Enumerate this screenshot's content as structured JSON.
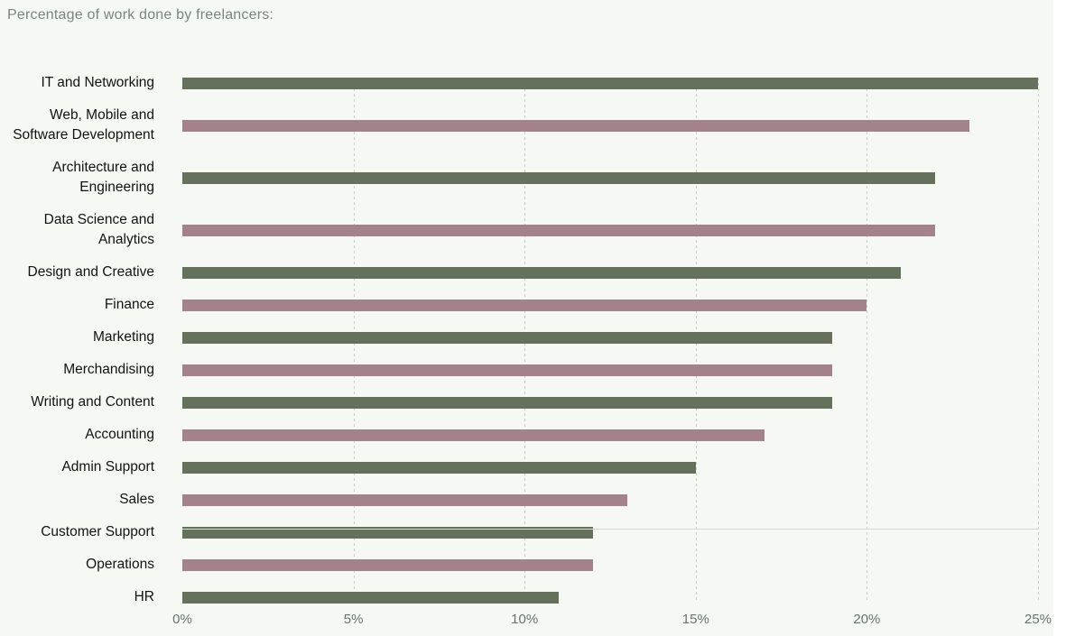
{
  "title": "Percentage of work done by freelancers:",
  "colors": {
    "background": "#f5f8f3",
    "bar_green": "#65715a",
    "bar_mauve": "#a4828a",
    "title_text": "#7b867b",
    "axis_text": "#69756a",
    "label_text": "#101314",
    "gridline": "#c9cec9",
    "axis_line": "#d6dad3"
  },
  "chart_data": {
    "type": "bar",
    "orientation": "horizontal",
    "title": "Percentage of work done by freelancers:",
    "categories": [
      "IT and Networking",
      "Web, Mobile and Software Development",
      "Architecture and Engineering",
      "Data Science and Analytics",
      "Design and Creative",
      "Finance",
      "Marketing",
      "Merchandising",
      "Writing and Content",
      "Accounting",
      "Admin Support",
      "Sales",
      "Customer Support",
      "Operations",
      "HR"
    ],
    "values": [
      25,
      23,
      22,
      22,
      21,
      20,
      19,
      19,
      19,
      17,
      15,
      13,
      12,
      12,
      11
    ],
    "xlabel": "",
    "ylabel": "",
    "xlim": [
      0,
      25
    ],
    "x_ticks": [
      0,
      5,
      10,
      15,
      20,
      25
    ],
    "x_tick_labels": [
      "0%",
      "5%",
      "10%",
      "15%",
      "20%",
      "25%"
    ],
    "grid": "vertical-dashed",
    "legend": "none",
    "bar_color_pattern": "alternating green/mauve starting with green"
  }
}
